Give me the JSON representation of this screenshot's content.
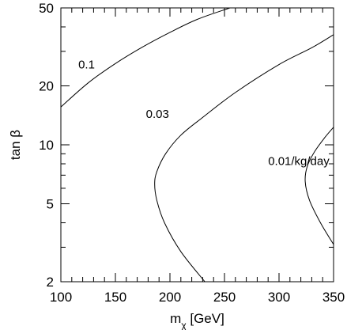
{
  "chart_data": {
    "type": "line",
    "xlabel_main": "m",
    "xlabel_sub": "χ",
    "xlabel_unit": " [GeV]",
    "ylabel": "tan β",
    "xlim": [
      100,
      350
    ],
    "ylim": [
      2,
      50
    ],
    "y_scale": "log",
    "grid": false,
    "x_ticks": [
      100,
      150,
      200,
      250,
      300,
      350
    ],
    "x_tick_labels": [
      "100",
      "150",
      "200",
      "250",
      "300",
      "350"
    ],
    "y_ticks": [
      2,
      5,
      10,
      20,
      50
    ],
    "y_tick_labels": [
      "2",
      "5",
      "10",
      "20",
      "50"
    ],
    "y_minor_ticks": [
      3,
      4,
      6,
      7,
      8,
      9,
      30,
      40
    ],
    "series": [
      {
        "name": "0.1",
        "points": [
          [
            100,
            15.6
          ],
          [
            125,
            20.7
          ],
          [
            150,
            26.0
          ],
          [
            175,
            31.6
          ],
          [
            200,
            37.5
          ],
          [
            225,
            43.7
          ],
          [
            255,
            50
          ]
        ]
      },
      {
        "name": "0.03",
        "points": [
          [
            232,
            2.0
          ],
          [
            210,
            2.85
          ],
          [
            195,
            4.0
          ],
          [
            188,
            5.2
          ],
          [
            186,
            6.3
          ],
          [
            188,
            7.3
          ],
          [
            196,
            9.0
          ],
          [
            210,
            11.2
          ],
          [
            230,
            13.8
          ],
          [
            260,
            18.5
          ],
          [
            300,
            25.7
          ],
          [
            330,
            31.3
          ],
          [
            350,
            36.5
          ]
        ]
      },
      {
        "name": "0.01/kg/day",
        "points": [
          [
            350,
            3.1
          ],
          [
            338,
            4.0
          ],
          [
            328,
            5.2
          ],
          [
            324,
            6.5
          ],
          [
            326,
            7.8
          ],
          [
            333,
            9.3
          ],
          [
            342,
            10.9
          ],
          [
            350,
            12.3
          ]
        ]
      }
    ],
    "annotations": [
      {
        "text": "0.1",
        "x": 116,
        "y": 24.5
      },
      {
        "text": "0.03",
        "x": 178,
        "y": 13.7
      },
      {
        "text": "0.01/kg/day",
        "x": 290,
        "y": 7.9
      }
    ]
  }
}
